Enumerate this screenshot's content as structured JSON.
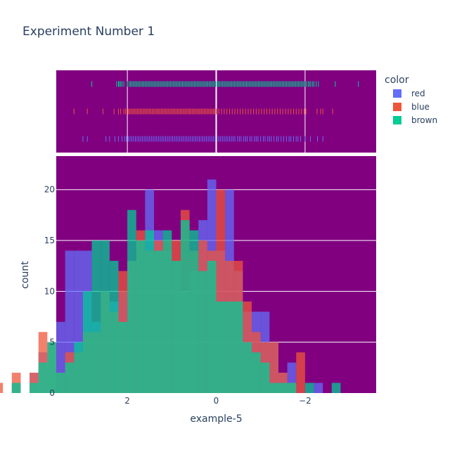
{
  "chart_data": {
    "type": "bar",
    "title": "Experiment Number 1",
    "xlabel": "example-5",
    "ylabel": "count",
    "xaxis_reversed": true,
    "xlim": [
      3.6,
      -3.6
    ],
    "ylim": [
      0,
      23.3
    ],
    "xticks": [
      {
        "value": 2,
        "label": "2"
      },
      {
        "value": 0,
        "label": "0"
      },
      {
        "value": -2,
        "label": "−2"
      }
    ],
    "yticks": [
      {
        "value": 0,
        "label": "0"
      },
      {
        "value": 5,
        "label": "5"
      },
      {
        "value": 10,
        "label": "10"
      },
      {
        "value": 15,
        "label": "15"
      },
      {
        "value": 20,
        "label": "20"
      }
    ],
    "bin_width": 0.2,
    "bin_start": -3.4,
    "barmode": "overlay",
    "plot_bg": "#800080",
    "grid": true,
    "legend": {
      "title": "color",
      "placement": "right"
    },
    "series": [
      {
        "name": "red",
        "color": "#636efa",
        "counts": [
          0,
          0,
          0,
          0,
          0,
          1,
          0,
          0,
          3,
          2,
          5,
          8,
          8,
          8,
          12,
          20,
          14,
          21,
          17,
          12,
          10,
          13,
          14,
          16,
          20,
          15,
          13,
          10,
          9,
          10,
          7,
          14,
          14,
          14,
          7,
          5,
          4,
          2,
          0,
          1,
          0,
          0,
          0
        ]
      },
      {
        "name": "blue",
        "color": "#ef553b",
        "counts": [
          0,
          0,
          0,
          0,
          0,
          0,
          0,
          4,
          1,
          2,
          5,
          5,
          6,
          9,
          13,
          13,
          20,
          14,
          15,
          14,
          18,
          15,
          15,
          15,
          14,
          16,
          13,
          12,
          8,
          10,
          6,
          6,
          4,
          4,
          2,
          5,
          6,
          2,
          0,
          2,
          0,
          1,
          0
        ]
      },
      {
        "name": "brown",
        "color": "#00cc96",
        "counts": [
          0,
          0,
          0,
          1,
          0,
          0,
          1,
          0,
          1,
          1,
          1,
          3,
          4,
          5,
          9,
          9,
          9,
          13,
          12,
          16,
          17,
          13,
          16,
          14,
          16,
          15,
          18,
          7,
          13,
          15,
          15,
          10,
          5,
          3,
          2,
          5,
          3,
          1,
          0,
          1,
          0,
          0,
          0
        ]
      }
    ],
    "rug": [
      {
        "name": "brown",
        "values": [
          -3.2,
          -2.68,
          -2.3,
          -2.25,
          -2.2,
          -2.17,
          -2.13,
          -2.1,
          -2.07,
          -2.03,
          -2.0,
          -1.97,
          -1.94,
          -1.91,
          -1.88,
          -1.85,
          -1.82,
          -1.79,
          -1.76,
          -1.73,
          -1.7,
          -1.67,
          -1.64,
          -1.61,
          -1.58,
          -1.55,
          -1.52,
          -1.49,
          -1.46,
          -1.43,
          -1.4,
          -1.37,
          -1.34,
          -1.31,
          -1.28,
          -1.25,
          -1.22,
          -1.19,
          -1.16,
          -1.13,
          -1.1,
          -1.07,
          -1.04,
          -1.01,
          -0.98,
          -0.95,
          -0.92,
          -0.89,
          -0.86,
          -0.83,
          -0.8,
          -0.77,
          -0.74,
          -0.71,
          -0.68,
          -0.65,
          -0.62,
          -0.59,
          -0.56,
          -0.53,
          -0.5,
          -0.47,
          -0.44,
          -0.41,
          -0.38,
          -0.35,
          -0.32,
          -0.29,
          -0.26,
          -0.23,
          -0.2,
          -0.17,
          -0.14,
          -0.11,
          -0.08,
          -0.05,
          -0.02,
          0.01,
          0.04,
          0.07,
          0.1,
          0.13,
          0.16,
          0.19,
          0.22,
          0.25,
          0.28,
          0.31,
          0.34,
          0.37,
          0.4,
          0.43,
          0.46,
          0.49,
          0.52,
          0.55,
          0.58,
          0.61,
          0.64,
          0.67,
          0.7,
          0.73,
          0.76,
          0.79,
          0.82,
          0.85,
          0.88,
          0.91,
          0.94,
          0.97,
          1.0,
          1.03,
          1.06,
          1.09,
          1.12,
          1.15,
          1.18,
          1.21,
          1.24,
          1.27,
          1.3,
          1.33,
          1.36,
          1.39,
          1.42,
          1.45,
          1.48,
          1.51,
          1.54,
          1.57,
          1.6,
          1.63,
          1.66,
          1.69,
          1.72,
          1.75,
          1.78,
          1.81,
          1.84,
          1.87,
          1.9,
          1.93,
          1.96,
          2.0,
          2.08,
          2.12,
          2.15,
          2.18,
          2.2,
          2.24,
          2.8
        ]
      },
      {
        "name": "blue",
        "values": [
          -2.62,
          -2.4,
          -2.35,
          -2.27,
          -2.02,
          -1.98,
          -1.92,
          -1.86,
          -1.8,
          -1.74,
          -1.68,
          -1.62,
          -1.56,
          -1.5,
          -1.44,
          -1.38,
          -1.32,
          -1.26,
          -1.2,
          -1.14,
          -1.08,
          -1.02,
          -0.96,
          -0.9,
          -0.84,
          -0.78,
          -0.72,
          -0.66,
          -0.6,
          -0.54,
          -0.48,
          -0.42,
          -0.36,
          -0.3,
          -0.24,
          -0.18,
          -0.12,
          -0.06,
          0.0,
          0.03,
          0.06,
          0.09,
          0.12,
          0.15,
          0.18,
          0.21,
          0.24,
          0.27,
          0.3,
          0.33,
          0.36,
          0.39,
          0.42,
          0.45,
          0.48,
          0.51,
          0.54,
          0.57,
          0.6,
          0.63,
          0.66,
          0.69,
          0.72,
          0.75,
          0.78,
          0.81,
          0.84,
          0.87,
          0.9,
          0.93,
          0.96,
          0.99,
          1.02,
          1.05,
          1.08,
          1.11,
          1.14,
          1.17,
          1.2,
          1.23,
          1.26,
          1.29,
          1.32,
          1.35,
          1.38,
          1.41,
          1.44,
          1.47,
          1.5,
          1.53,
          1.56,
          1.59,
          1.62,
          1.65,
          1.68,
          1.71,
          1.74,
          1.77,
          1.8,
          1.83,
          1.86,
          1.89,
          1.92,
          1.95,
          1.98,
          2.01,
          2.04,
          2.08,
          2.15,
          2.2,
          2.3,
          2.55,
          2.9,
          3.2
        ]
      },
      {
        "name": "red",
        "values": [
          -2.4,
          -2.28,
          -2.12,
          -2.0,
          -1.9,
          -1.84,
          -1.8,
          -1.74,
          -1.68,
          -1.64,
          -1.58,
          -1.52,
          -1.46,
          -1.4,
          -1.36,
          -1.3,
          -1.24,
          -1.2,
          -1.16,
          -1.1,
          -1.06,
          -1.0,
          -0.94,
          -0.9,
          -0.86,
          -0.8,
          -0.76,
          -0.7,
          -0.66,
          -0.62,
          -0.56,
          -0.52,
          -0.48,
          -0.42,
          -0.38,
          -0.34,
          -0.3,
          -0.26,
          -0.22,
          -0.18,
          -0.14,
          -0.1,
          -0.06,
          -0.02,
          0.02,
          0.06,
          0.1,
          0.14,
          0.18,
          0.22,
          0.26,
          0.3,
          0.34,
          0.38,
          0.42,
          0.46,
          0.5,
          0.54,
          0.58,
          0.62,
          0.66,
          0.7,
          0.74,
          0.78,
          0.82,
          0.86,
          0.9,
          0.94,
          0.98,
          1.02,
          1.06,
          1.1,
          1.14,
          1.18,
          1.22,
          1.26,
          1.3,
          1.34,
          1.38,
          1.42,
          1.46,
          1.5,
          1.54,
          1.58,
          1.62,
          1.66,
          1.7,
          1.74,
          1.78,
          1.82,
          1.86,
          1.9,
          1.94,
          1.98,
          2.02,
          2.06,
          2.12,
          2.2,
          2.28,
          2.4,
          2.48,
          2.9,
          3.0
        ]
      }
    ]
  }
}
